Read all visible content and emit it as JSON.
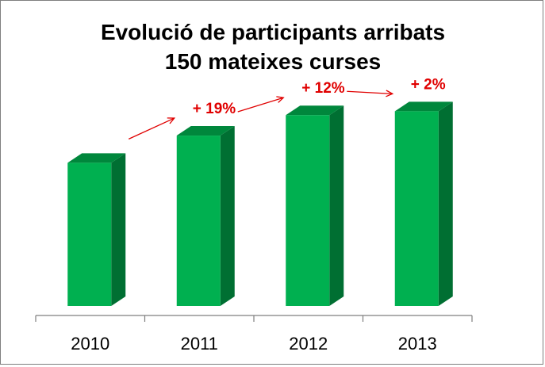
{
  "chart_data": {
    "type": "bar",
    "title": "Evolució de participants arribats",
    "subtitle": "150 mateixes curses",
    "categories": [
      "2010",
      "2011",
      "2012",
      "2013"
    ],
    "values": [
      100,
      119,
      133.3,
      136
    ],
    "ylim": [
      0,
      160
    ],
    "annotations": [
      {
        "from": "2010",
        "to": "2011",
        "label": "+ 19%"
      },
      {
        "from": "2011",
        "to": "2012",
        "label": "+ 12%"
      },
      {
        "from": "2012",
        "to": "2013",
        "label": "+ 2%"
      }
    ],
    "grid": false,
    "legend": "none",
    "colors": {
      "bar_front": "#00b050",
      "bar_side": "#006f32",
      "bar_top": "#00873c",
      "annotation": "#e00000",
      "axis": "#7f7f7f"
    }
  }
}
